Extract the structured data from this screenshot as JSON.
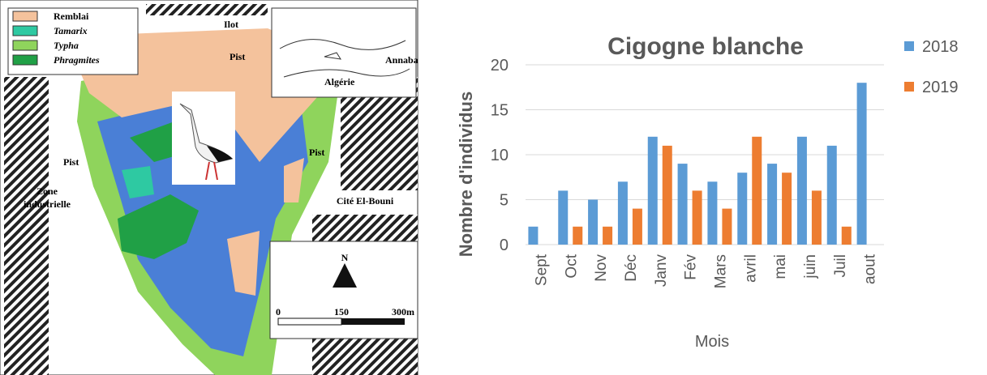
{
  "map": {
    "legend": [
      {
        "label": "Remblai",
        "color": "#f4c29c"
      },
      {
        "label": "Tamarix",
        "color": "#2ec9a2"
      },
      {
        "label": "Typha",
        "color": "#8fd45c"
      },
      {
        "label": "Phragmites",
        "color": "#20a046"
      }
    ],
    "labels": {
      "ilot": "Ilot",
      "pist_top": "Pist",
      "pist_left": "Pist",
      "pist_right": "Pist",
      "zone": [
        "Zone",
        "industrielle"
      ],
      "cite": "Cité El-Bouni",
      "algerie": "Algérie",
      "annaba": "Annaba",
      "north": "N",
      "scale": [
        "0",
        "150",
        "300m"
      ]
    }
  },
  "chart_data": {
    "type": "bar",
    "title": "Cigogne blanche",
    "x_label": "Mois",
    "y_label": "Nombre d'individus",
    "categories": [
      "Sept",
      "Oct",
      "Nov",
      "Déc",
      "Janv",
      "Fév",
      "Mars",
      "avril",
      "mai",
      "juin",
      "Juil",
      "aout"
    ],
    "series": [
      {
        "name": "2018",
        "color": "#5b9bd5",
        "values": [
          2,
          6,
          5,
          7,
          12,
          9,
          7,
          8,
          9,
          12,
          11,
          18
        ]
      },
      {
        "name": "2019",
        "color": "#ed7d31",
        "values": [
          null,
          2,
          2,
          4,
          11,
          6,
          4,
          12,
          8,
          6,
          2,
          null
        ]
      }
    ],
    "ylim": [
      0,
      20
    ],
    "yticks": [
      0,
      5,
      10,
      15,
      20
    ],
    "grid": true,
    "legend": "right"
  }
}
